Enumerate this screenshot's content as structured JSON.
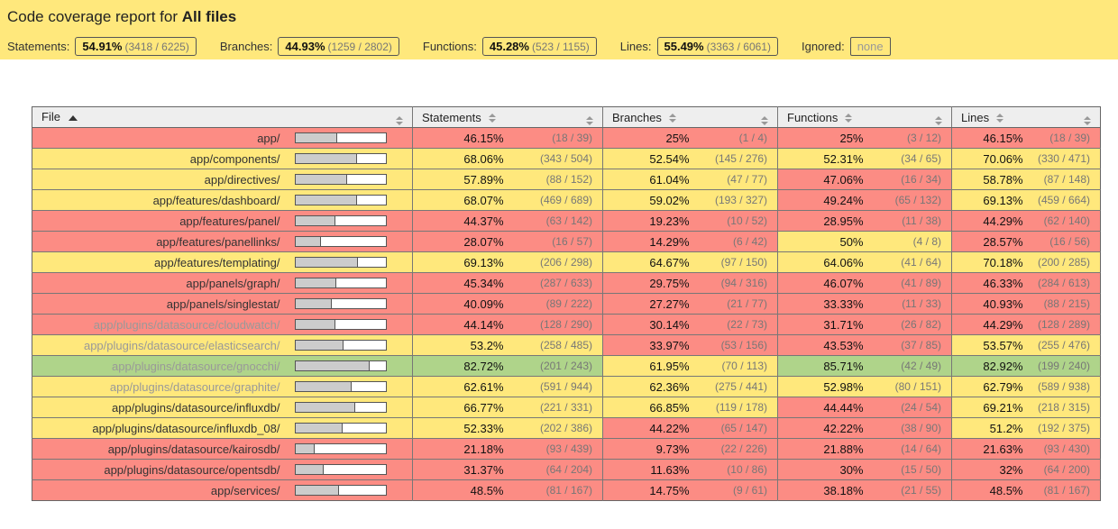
{
  "colors": {
    "low": "#FC8C84",
    "medium": "#FFE87C",
    "high": "#AFD48A",
    "bar_fill": "#CCCCCC",
    "bar_empty": "#FFFFFF"
  },
  "header": {
    "title_prefix": "Code coverage report for",
    "title_entity": "All files",
    "metrics": [
      {
        "label": "Statements:",
        "pct": "54.91%",
        "fraction": "(3418 / 6225)"
      },
      {
        "label": "Branches:",
        "pct": "44.93%",
        "fraction": "(1259 / 2802)"
      },
      {
        "label": "Functions:",
        "pct": "45.28%",
        "fraction": "(523 / 1155)"
      },
      {
        "label": "Lines:",
        "pct": "55.49%",
        "fraction": "(3363 / 6061)"
      }
    ],
    "ignored_label": "Ignored:",
    "ignored_value": "none"
  },
  "table": {
    "columns": [
      {
        "label": "File",
        "sorted": "asc"
      },
      {
        "label": "Statements"
      },
      {
        "label": "Branches"
      },
      {
        "label": "Functions"
      },
      {
        "label": "Lines"
      }
    ],
    "rows": [
      {
        "file": "app/",
        "visited": false,
        "bar_pct": 46.15,
        "statements": {
          "pct": "46.15%",
          "frac": "(18 / 39)",
          "level": "low"
        },
        "branches": {
          "pct": "25%",
          "frac": "(1 / 4)",
          "level": "low"
        },
        "functions": {
          "pct": "25%",
          "frac": "(3 / 12)",
          "level": "low"
        },
        "lines": {
          "pct": "46.15%",
          "frac": "(18 / 39)",
          "level": "low"
        }
      },
      {
        "file": "app/components/",
        "visited": false,
        "bar_pct": 68.06,
        "statements": {
          "pct": "68.06%",
          "frac": "(343 / 504)",
          "level": "medium"
        },
        "branches": {
          "pct": "52.54%",
          "frac": "(145 / 276)",
          "level": "medium"
        },
        "functions": {
          "pct": "52.31%",
          "frac": "(34 / 65)",
          "level": "medium"
        },
        "lines": {
          "pct": "70.06%",
          "frac": "(330 / 471)",
          "level": "medium"
        }
      },
      {
        "file": "app/directives/",
        "visited": false,
        "bar_pct": 57.89,
        "statements": {
          "pct": "57.89%",
          "frac": "(88 / 152)",
          "level": "medium"
        },
        "branches": {
          "pct": "61.04%",
          "frac": "(47 / 77)",
          "level": "medium"
        },
        "functions": {
          "pct": "47.06%",
          "frac": "(16 / 34)",
          "level": "low"
        },
        "lines": {
          "pct": "58.78%",
          "frac": "(87 / 148)",
          "level": "medium"
        }
      },
      {
        "file": "app/features/dashboard/",
        "visited": false,
        "bar_pct": 68.07,
        "statements": {
          "pct": "68.07%",
          "frac": "(469 / 689)",
          "level": "medium"
        },
        "branches": {
          "pct": "59.02%",
          "frac": "(193 / 327)",
          "level": "medium"
        },
        "functions": {
          "pct": "49.24%",
          "frac": "(65 / 132)",
          "level": "low"
        },
        "lines": {
          "pct": "69.13%",
          "frac": "(459 / 664)",
          "level": "medium"
        }
      },
      {
        "file": "app/features/panel/",
        "visited": false,
        "bar_pct": 44.37,
        "statements": {
          "pct": "44.37%",
          "frac": "(63 / 142)",
          "level": "low"
        },
        "branches": {
          "pct": "19.23%",
          "frac": "(10 / 52)",
          "level": "low"
        },
        "functions": {
          "pct": "28.95%",
          "frac": "(11 / 38)",
          "level": "low"
        },
        "lines": {
          "pct": "44.29%",
          "frac": "(62 / 140)",
          "level": "low"
        }
      },
      {
        "file": "app/features/panellinks/",
        "visited": false,
        "bar_pct": 28.07,
        "statements": {
          "pct": "28.07%",
          "frac": "(16 / 57)",
          "level": "low"
        },
        "branches": {
          "pct": "14.29%",
          "frac": "(6 / 42)",
          "level": "low"
        },
        "functions": {
          "pct": "50%",
          "frac": "(4 / 8)",
          "level": "medium"
        },
        "lines": {
          "pct": "28.57%",
          "frac": "(16 / 56)",
          "level": "low"
        }
      },
      {
        "file": "app/features/templating/",
        "visited": false,
        "bar_pct": 69.13,
        "statements": {
          "pct": "69.13%",
          "frac": "(206 / 298)",
          "level": "medium"
        },
        "branches": {
          "pct": "64.67%",
          "frac": "(97 / 150)",
          "level": "medium"
        },
        "functions": {
          "pct": "64.06%",
          "frac": "(41 / 64)",
          "level": "medium"
        },
        "lines": {
          "pct": "70.18%",
          "frac": "(200 / 285)",
          "level": "medium"
        }
      },
      {
        "file": "app/panels/graph/",
        "visited": false,
        "bar_pct": 45.34,
        "statements": {
          "pct": "45.34%",
          "frac": "(287 / 633)",
          "level": "low"
        },
        "branches": {
          "pct": "29.75%",
          "frac": "(94 / 316)",
          "level": "low"
        },
        "functions": {
          "pct": "46.07%",
          "frac": "(41 / 89)",
          "level": "low"
        },
        "lines": {
          "pct": "46.33%",
          "frac": "(284 / 613)",
          "level": "low"
        }
      },
      {
        "file": "app/panels/singlestat/",
        "visited": false,
        "bar_pct": 40.09,
        "statements": {
          "pct": "40.09%",
          "frac": "(89 / 222)",
          "level": "low"
        },
        "branches": {
          "pct": "27.27%",
          "frac": "(21 / 77)",
          "level": "low"
        },
        "functions": {
          "pct": "33.33%",
          "frac": "(11 / 33)",
          "level": "low"
        },
        "lines": {
          "pct": "40.93%",
          "frac": "(88 / 215)",
          "level": "low"
        }
      },
      {
        "file": "app/plugins/datasource/cloudwatch/",
        "visited": true,
        "bar_pct": 44.14,
        "statements": {
          "pct": "44.14%",
          "frac": "(128 / 290)",
          "level": "low"
        },
        "branches": {
          "pct": "30.14%",
          "frac": "(22 / 73)",
          "level": "low"
        },
        "functions": {
          "pct": "31.71%",
          "frac": "(26 / 82)",
          "level": "low"
        },
        "lines": {
          "pct": "44.29%",
          "frac": "(128 / 289)",
          "level": "low"
        }
      },
      {
        "file": "app/plugins/datasource/elasticsearch/",
        "visited": true,
        "bar_pct": 53.2,
        "statements": {
          "pct": "53.2%",
          "frac": "(258 / 485)",
          "level": "medium"
        },
        "branches": {
          "pct": "33.97%",
          "frac": "(53 / 156)",
          "level": "low"
        },
        "functions": {
          "pct": "43.53%",
          "frac": "(37 / 85)",
          "level": "low"
        },
        "lines": {
          "pct": "53.57%",
          "frac": "(255 / 476)",
          "level": "medium"
        }
      },
      {
        "file": "app/plugins/datasource/gnocchi/",
        "visited": true,
        "bar_pct": 82.72,
        "statements": {
          "pct": "82.72%",
          "frac": "(201 / 243)",
          "level": "high"
        },
        "branches": {
          "pct": "61.95%",
          "frac": "(70 / 113)",
          "level": "medium"
        },
        "functions": {
          "pct": "85.71%",
          "frac": "(42 / 49)",
          "level": "high"
        },
        "lines": {
          "pct": "82.92%",
          "frac": "(199 / 240)",
          "level": "high"
        }
      },
      {
        "file": "app/plugins/datasource/graphite/",
        "visited": true,
        "bar_pct": 62.61,
        "statements": {
          "pct": "62.61%",
          "frac": "(591 / 944)",
          "level": "medium"
        },
        "branches": {
          "pct": "62.36%",
          "frac": "(275 / 441)",
          "level": "medium"
        },
        "functions": {
          "pct": "52.98%",
          "frac": "(80 / 151)",
          "level": "medium"
        },
        "lines": {
          "pct": "62.79%",
          "frac": "(589 / 938)",
          "level": "medium"
        }
      },
      {
        "file": "app/plugins/datasource/influxdb/",
        "visited": false,
        "bar_pct": 66.77,
        "statements": {
          "pct": "66.77%",
          "frac": "(221 / 331)",
          "level": "medium"
        },
        "branches": {
          "pct": "66.85%",
          "frac": "(119 / 178)",
          "level": "medium"
        },
        "functions": {
          "pct": "44.44%",
          "frac": "(24 / 54)",
          "level": "low"
        },
        "lines": {
          "pct": "69.21%",
          "frac": "(218 / 315)",
          "level": "medium"
        }
      },
      {
        "file": "app/plugins/datasource/influxdb_08/",
        "visited": false,
        "bar_pct": 52.33,
        "statements": {
          "pct": "52.33%",
          "frac": "(202 / 386)",
          "level": "medium"
        },
        "branches": {
          "pct": "44.22%",
          "frac": "(65 / 147)",
          "level": "low"
        },
        "functions": {
          "pct": "42.22%",
          "frac": "(38 / 90)",
          "level": "low"
        },
        "lines": {
          "pct": "51.2%",
          "frac": "(192 / 375)",
          "level": "medium"
        }
      },
      {
        "file": "app/plugins/datasource/kairosdb/",
        "visited": false,
        "bar_pct": 21.18,
        "statements": {
          "pct": "21.18%",
          "frac": "(93 / 439)",
          "level": "low"
        },
        "branches": {
          "pct": "9.73%",
          "frac": "(22 / 226)",
          "level": "low"
        },
        "functions": {
          "pct": "21.88%",
          "frac": "(14 / 64)",
          "level": "low"
        },
        "lines": {
          "pct": "21.63%",
          "frac": "(93 / 430)",
          "level": "low"
        }
      },
      {
        "file": "app/plugins/datasource/opentsdb/",
        "visited": false,
        "bar_pct": 31.37,
        "statements": {
          "pct": "31.37%",
          "frac": "(64 / 204)",
          "level": "low"
        },
        "branches": {
          "pct": "11.63%",
          "frac": "(10 / 86)",
          "level": "low"
        },
        "functions": {
          "pct": "30%",
          "frac": "(15 / 50)",
          "level": "low"
        },
        "lines": {
          "pct": "32%",
          "frac": "(64 / 200)",
          "level": "low"
        }
      },
      {
        "file": "app/services/",
        "visited": false,
        "bar_pct": 48.5,
        "statements": {
          "pct": "48.5%",
          "frac": "(81 / 167)",
          "level": "low"
        },
        "branches": {
          "pct": "14.75%",
          "frac": "(9 / 61)",
          "level": "low"
        },
        "functions": {
          "pct": "38.18%",
          "frac": "(21 / 55)",
          "level": "low"
        },
        "lines": {
          "pct": "48.5%",
          "frac": "(81 / 167)",
          "level": "low"
        }
      }
    ]
  }
}
